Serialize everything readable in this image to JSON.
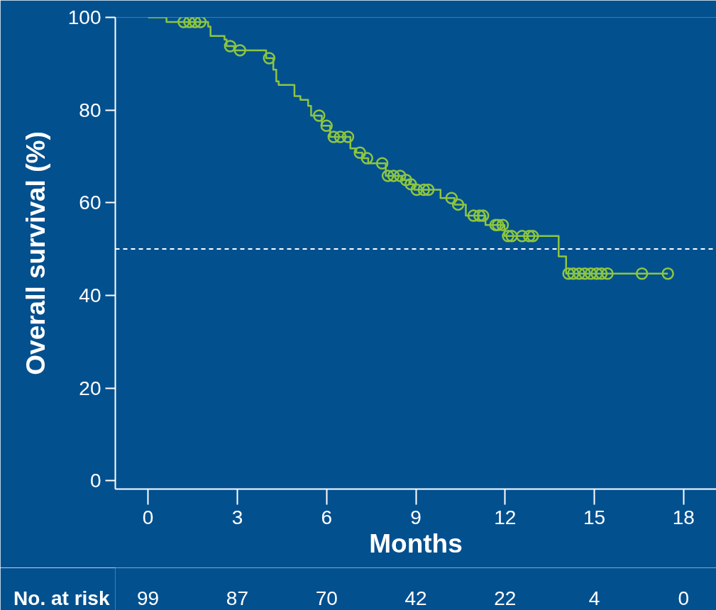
{
  "chart_data": {
    "type": "step",
    "xlabel": "Months",
    "ylabel": "Overall survival (%)",
    "xlim": [
      -1.1,
      19.1
    ],
    "ylim": [
      -1.8,
      100
    ],
    "xticks": [
      0,
      3,
      6,
      9,
      12,
      15,
      18
    ],
    "yticks": [
      0,
      20,
      40,
      60,
      80,
      100
    ],
    "grid": false,
    "line_style": "solid",
    "series": [
      {
        "color": "#8dc63f",
        "x": [
          0,
          0.62,
          2.02,
          2.1,
          2.57,
          2.64,
          2.89,
          3.97,
          4.21,
          4.31,
          4.39,
          4.92,
          5.12,
          5.38,
          5.48,
          5.84,
          6.12,
          6.8,
          7.0,
          7.2,
          7.4,
          7.99,
          8.55,
          8.78,
          8.95,
          9.83,
          10.3,
          10.68,
          11.34,
          11.98,
          13.8,
          14.05,
          17.47
        ],
        "values": [
          100,
          99.0,
          98.0,
          96.0,
          95.2,
          93.8,
          92.9,
          91.2,
          88.7,
          86.2,
          85.4,
          83.0,
          82.2,
          80.9,
          78.8,
          76.6,
          74.2,
          71.7,
          70.8,
          69.6,
          68.5,
          65.8,
          64.9,
          64.0,
          62.8,
          61.0,
          59.6,
          57.2,
          55.2,
          52.8,
          48.4,
          44.7,
          44.7
        ]
      },
      {
        "type": "scatter",
        "color": "#8dc63f",
        "marker": "circle",
        "x": [
          1.2,
          1.39,
          1.58,
          1.76,
          2.76,
          3.09,
          4.07,
          5.75,
          6.0,
          6.24,
          6.46,
          6.72,
          7.12,
          7.36,
          7.87,
          8.06,
          8.25,
          8.47,
          8.67,
          8.83,
          9.03,
          9.27,
          9.42,
          10.2,
          10.42,
          10.94,
          11.14,
          11.26,
          11.68,
          11.76,
          11.92,
          12.1,
          12.22,
          12.57,
          12.81,
          12.93,
          14.13,
          14.29,
          14.49,
          14.68,
          14.88,
          15.08,
          15.24,
          15.44,
          16.6,
          17.47
        ],
        "values": [
          99.0,
          99.0,
          99.0,
          99.0,
          93.8,
          92.9,
          91.2,
          78.8,
          76.6,
          74.2,
          74.2,
          74.2,
          70.8,
          69.6,
          68.5,
          65.8,
          65.8,
          65.8,
          64.9,
          64.0,
          62.8,
          62.8,
          62.8,
          61.0,
          59.6,
          57.2,
          57.2,
          57.2,
          55.2,
          55.2,
          55.2,
          52.8,
          52.8,
          52.8,
          52.8,
          52.8,
          44.7,
          44.7,
          44.7,
          44.7,
          44.7,
          44.7,
          44.7,
          44.7,
          44.7,
          44.7
        ]
      }
    ],
    "ref_lines": [
      {
        "axis": "y",
        "value": 50,
        "color": "#ffffff",
        "line_style": "dashed"
      }
    ],
    "annotations": [
      "No. at risk",
      "99",
      "87",
      "70",
      "42",
      "22",
      "4",
      "0"
    ]
  }
}
